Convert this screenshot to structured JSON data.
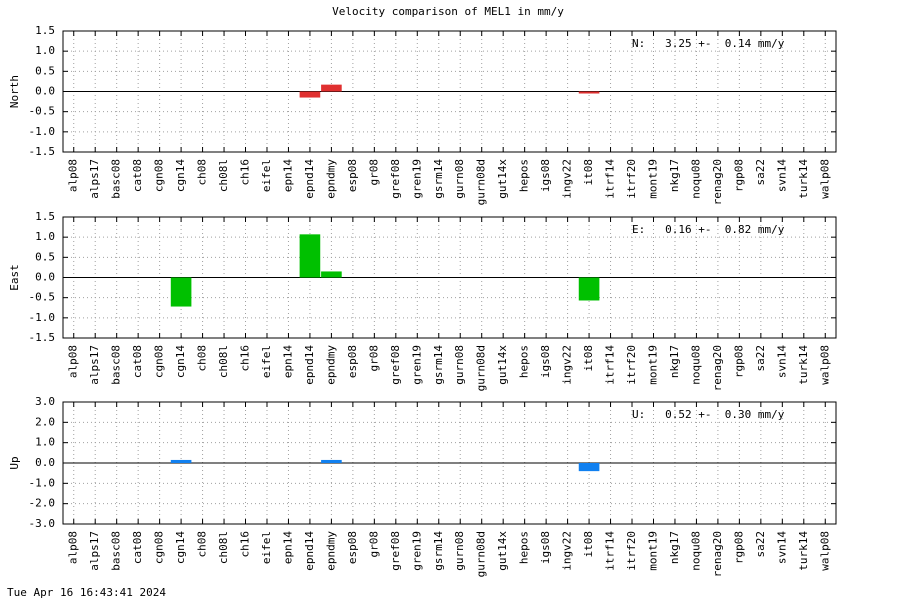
{
  "title": "Velocity comparison of MEL1 in mm/y",
  "timestamp": "Tue Apr 16 16:43:41 2024",
  "chart_data": [
    {
      "type": "bar",
      "ylabel": "North",
      "annotation": "N:   3.25 +-  0.14 mm/y",
      "categories": [
        "alp08",
        "alps17",
        "basc08",
        "cat08",
        "cgn08",
        "cgn14",
        "ch08",
        "ch08l",
        "ch16",
        "eifel",
        "epn14",
        "epnd14",
        "epndmy",
        "esp08",
        "gr08",
        "gref08",
        "gren19",
        "gsrm14",
        "gurn08",
        "gurn08d",
        "gut14x",
        "hepos",
        "igs08",
        "ingv22",
        "it08",
        "itrf14",
        "itrf20",
        "mont19",
        "nkg17",
        "noqu08",
        "renag20",
        "rgp08",
        "sa22",
        "svn14",
        "turk14",
        "walp08"
      ],
      "values": [
        null,
        null,
        null,
        null,
        null,
        null,
        null,
        null,
        null,
        null,
        null,
        -0.15,
        0.17,
        null,
        null,
        null,
        null,
        null,
        null,
        null,
        null,
        null,
        null,
        null,
        -0.05,
        null,
        null,
        null,
        null,
        null,
        null,
        null,
        null,
        null,
        null,
        null
      ],
      "color": "#e03030",
      "xlim": [
        -0.5,
        35.5
      ],
      "ylim": [
        -1.5,
        1.5
      ],
      "yticks": [
        1.5,
        {
          "value": 1.0,
          "label": "1.0"
        },
        0.5,
        {
          "value": 0,
          "label": "0.0"
        },
        -0.5,
        {
          "value": -1.0,
          "label": "-1.0"
        },
        -1.5
      ],
      "grid": true
    },
    {
      "type": "bar",
      "ylabel": "East",
      "annotation": "E:   0.16 +-  0.82 mm/y",
      "categories": [
        "alp08",
        "alps17",
        "basc08",
        "cat08",
        "cgn08",
        "cgn14",
        "ch08",
        "ch08l",
        "ch16",
        "eifel",
        "epn14",
        "epnd14",
        "epndmy",
        "esp08",
        "gr08",
        "gref08",
        "gren19",
        "gsrm14",
        "gurn08",
        "gurn08d",
        "gut14x",
        "hepos",
        "igs08",
        "ingv22",
        "it08",
        "itrf14",
        "itrf20",
        "mont19",
        "nkg17",
        "noqu08",
        "renag20",
        "rgp08",
        "sa22",
        "svn14",
        "turk14",
        "walp08"
      ],
      "values": [
        null,
        null,
        null,
        null,
        null,
        -0.72,
        null,
        null,
        null,
        null,
        null,
        1.07,
        0.15,
        null,
        null,
        null,
        null,
        null,
        null,
        null,
        null,
        null,
        null,
        null,
        -0.57,
        null,
        null,
        null,
        null,
        null,
        null,
        null,
        null,
        null,
        null,
        null
      ],
      "color": "#00c000",
      "xlim": [
        -0.5,
        35.5
      ],
      "ylim": [
        -1.5,
        1.5
      ],
      "yticks": [
        1.5,
        {
          "value": 1.0,
          "label": "1.0"
        },
        0.5,
        {
          "value": 0,
          "label": "0.0"
        },
        -0.5,
        {
          "value": -1.0,
          "label": "-1.0"
        },
        -1.5
      ],
      "grid": true
    },
    {
      "type": "bar",
      "ylabel": "Up",
      "annotation": "U:   0.52 +-  0.30 mm/y",
      "categories": [
        "alp08",
        "alps17",
        "basc08",
        "cat08",
        "cgn08",
        "cgn14",
        "ch08",
        "ch08l",
        "ch16",
        "eifel",
        "epn14",
        "epnd14",
        "epndmy",
        "esp08",
        "gr08",
        "gref08",
        "gren19",
        "gsrm14",
        "gurn08",
        "gurn08d",
        "gut14x",
        "hepos",
        "igs08",
        "ingv22",
        "it08",
        "itrf14",
        "itrf20",
        "mont19",
        "nkg17",
        "noqu08",
        "renag20",
        "rgp08",
        "sa22",
        "svn14",
        "turk14",
        "walp08"
      ],
      "values": [
        null,
        null,
        null,
        null,
        null,
        0.15,
        null,
        null,
        null,
        null,
        null,
        null,
        0.15,
        null,
        null,
        null,
        null,
        null,
        null,
        null,
        null,
        null,
        null,
        null,
        -0.4,
        null,
        null,
        null,
        null,
        null,
        null,
        null,
        null,
        null,
        null,
        null
      ],
      "color": "#1080f0",
      "xlim": [
        -0.5,
        35.5
      ],
      "ylim": [
        -3,
        3
      ],
      "yticks": [
        {
          "value": 3,
          "label": "3.0"
        },
        {
          "value": 2,
          "label": "2.0"
        },
        {
          "value": 1,
          "label": "1.0"
        },
        {
          "value": 0,
          "label": "0.0"
        },
        {
          "value": -1,
          "label": "-1.0"
        },
        {
          "value": -2,
          "label": "-2.0"
        },
        {
          "value": -3,
          "label": "-3.0"
        }
      ],
      "grid": true
    }
  ]
}
